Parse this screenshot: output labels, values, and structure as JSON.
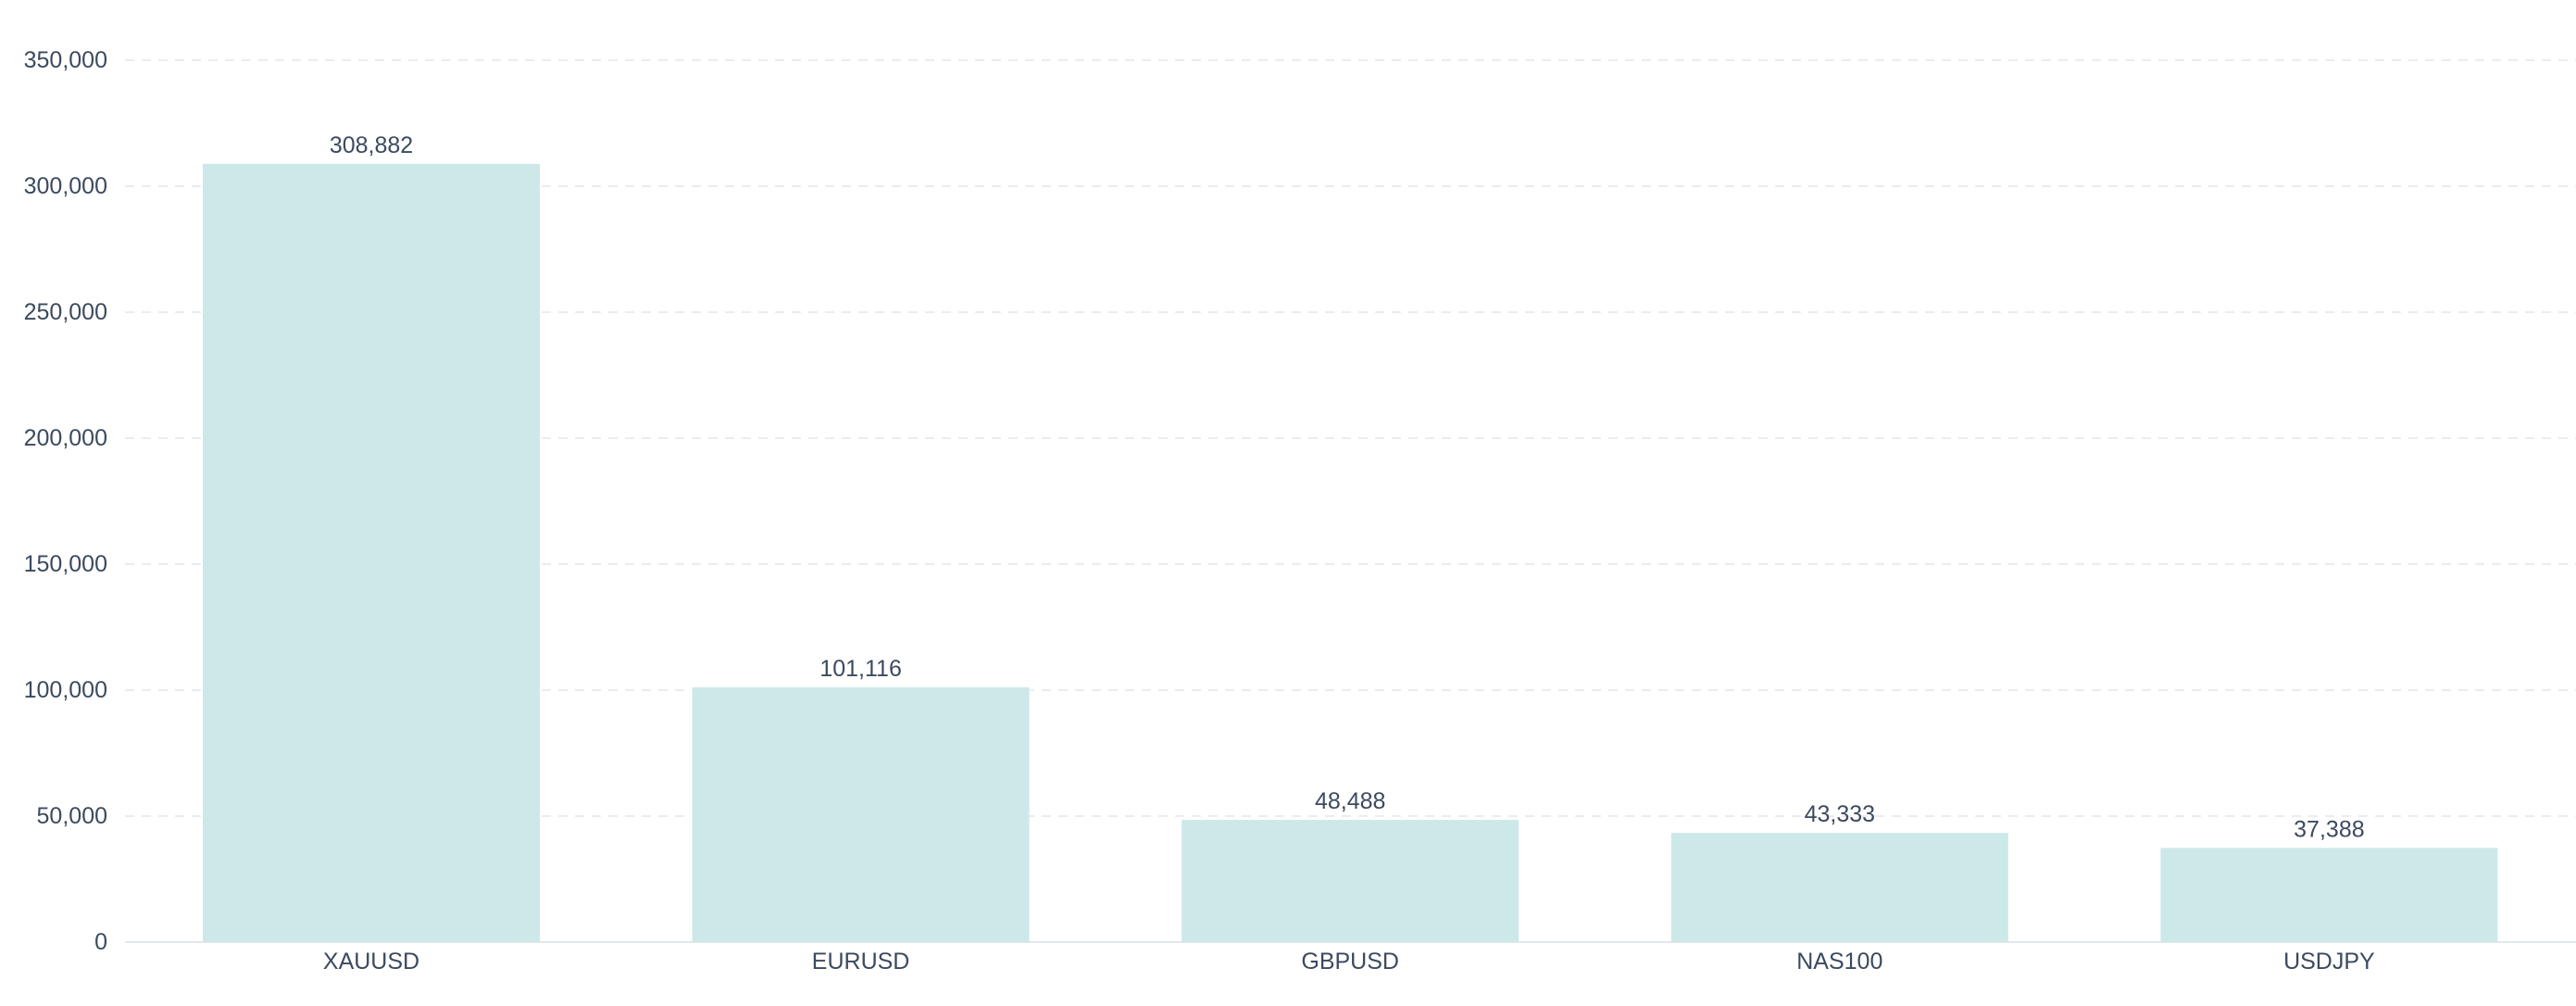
{
  "chart_data": {
    "type": "bar",
    "categories": [
      "XAUUSD",
      "EURUSD",
      "GBPUSD",
      "NAS100",
      "USDJPY"
    ],
    "values": [
      308882,
      101116,
      48488,
      43333,
      37388
    ],
    "data_labels": [
      "308,882",
      "101,116",
      "48,488",
      "43,333",
      "37,388"
    ],
    "y_ticks": [
      0,
      50000,
      100000,
      150000,
      200000,
      250000,
      300000,
      350000
    ],
    "y_tick_labels": [
      "0",
      "50,000",
      "100,000",
      "150,000",
      "200,000",
      "250,000",
      "300,000",
      "350,000"
    ],
    "ylim": [
      0,
      350000
    ],
    "title": "",
    "xlabel": "",
    "ylabel": "",
    "grid": true,
    "legend": "none",
    "colors": {
      "bar": "#cde8e9",
      "text": "#3c4a5f",
      "grid": "#e3e6ea",
      "background": "#ffffff"
    }
  }
}
